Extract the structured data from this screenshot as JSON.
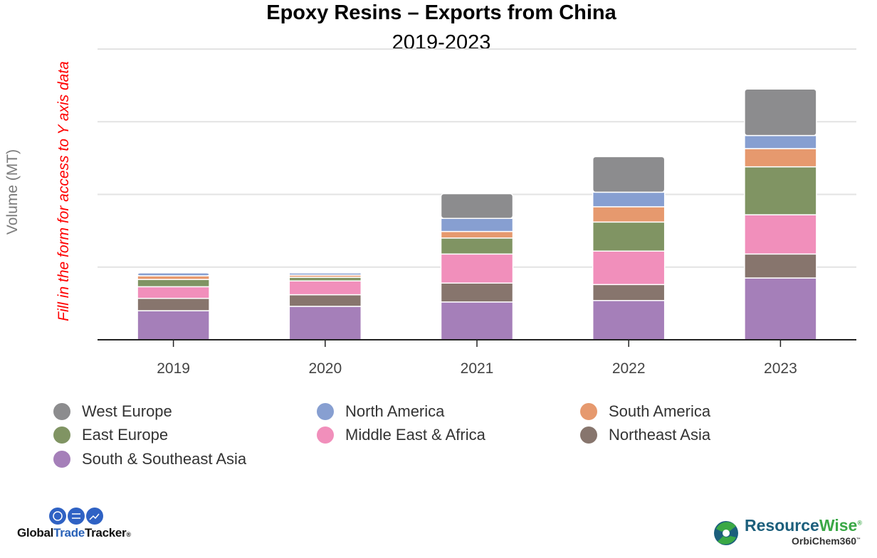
{
  "chart_data": {
    "type": "bar",
    "stacked": true,
    "title": "Epoxy Resins – Exports from China",
    "subtitle": "2019-2023",
    "xlabel": "",
    "ylabel": "Volume (MT)",
    "y_tick_labels_shown": false,
    "ylim": [
      0,
      4
    ],
    "grid": true,
    "legend_placement": "bottom",
    "categories": [
      "2019",
      "2020",
      "2021",
      "2022",
      "2023"
    ],
    "series": [
      {
        "name": "South & Southeast Asia",
        "color": "#a57fb9",
        "values": [
          0.4,
          0.46,
          0.52,
          0.54,
          0.85
        ]
      },
      {
        "name": "Northeast Asia",
        "color": "#87756d",
        "values": [
          0.17,
          0.16,
          0.26,
          0.22,
          0.33
        ]
      },
      {
        "name": "Middle East & Africa",
        "color": "#f18fbb",
        "values": [
          0.16,
          0.19,
          0.4,
          0.46,
          0.54
        ]
      },
      {
        "name": "East Europe",
        "color": "#809463",
        "values": [
          0.1,
          0.05,
          0.22,
          0.4,
          0.66
        ]
      },
      {
        "name": "South America",
        "color": "#e6996e",
        "values": [
          0.05,
          0.03,
          0.09,
          0.21,
          0.25
        ]
      },
      {
        "name": "North America",
        "color": "#879fd1",
        "values": [
          0.04,
          0.03,
          0.18,
          0.2,
          0.18
        ]
      },
      {
        "name": "West Europe",
        "color": "#8c8c8e",
        "values": [
          0.0,
          0.01,
          0.34,
          0.49,
          0.64
        ]
      }
    ],
    "legend_order": [
      "West Europe",
      "North America",
      "South America",
      "East Europe",
      "Middle East & Africa",
      "Northeast Asia",
      "South & Southeast Asia"
    ]
  },
  "annotation": "Fill in the form for access to Y axis data",
  "logos": {
    "left": "GlobalTradeTracker",
    "right_main": "ResourceWise",
    "right_sub": "OrbiChem360"
  }
}
